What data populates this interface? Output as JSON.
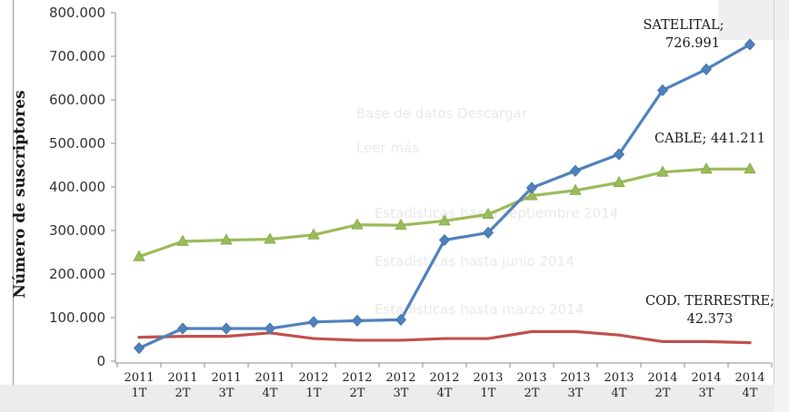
{
  "chart_data": {
    "type": "line",
    "title": "",
    "xlabel": "",
    "ylabel": "Número de suscriptores",
    "ylim": [
      0,
      800000
    ],
    "yticks": [
      "0",
      "100.000",
      "200.000",
      "300.000",
      "400.000",
      "500.000",
      "600.000",
      "700.000",
      "800.000"
    ],
    "categories": [
      {
        "year": "2011",
        "quarter": "1T"
      },
      {
        "year": "2011",
        "quarter": "2T"
      },
      {
        "year": "2011",
        "quarter": "3T"
      },
      {
        "year": "2011",
        "quarter": "4T"
      },
      {
        "year": "2012",
        "quarter": "1T"
      },
      {
        "year": "2012",
        "quarter": "2T"
      },
      {
        "year": "2012",
        "quarter": "3T"
      },
      {
        "year": "2012",
        "quarter": "4T"
      },
      {
        "year": "2013",
        "quarter": "1T"
      },
      {
        "year": "2013",
        "quarter": "2T"
      },
      {
        "year": "2013",
        "quarter": "3T"
      },
      {
        "year": "2013",
        "quarter": "4T"
      },
      {
        "year": "2014",
        "quarter": "2T"
      },
      {
        "year": "2014",
        "quarter": "3T"
      },
      {
        "year": "2014",
        "quarter": "4T"
      }
    ],
    "series": [
      {
        "name": "SATELITAL",
        "color": "#4f81bd",
        "marker": "diamond",
        "values": [
          30000,
          75000,
          75000,
          75000,
          90000,
          93000,
          95000,
          278000,
          295000,
          398000,
          437000,
          475000,
          622000,
          670000,
          726991
        ]
      },
      {
        "name": "CABLE",
        "color": "#9bbb59",
        "marker": "triangle",
        "values": [
          240000,
          275000,
          278000,
          280000,
          290000,
          313000,
          312000,
          322000,
          337000,
          380000,
          392000,
          410000,
          434000,
          441000,
          441211
        ]
      },
      {
        "name": "COD. TERRESTRE",
        "color": "#c0504d",
        "marker": "none",
        "values": [
          55000,
          57000,
          57000,
          65000,
          52000,
          48000,
          48000,
          52000,
          52000,
          68000,
          68000,
          60000,
          45000,
          45000,
          42373
        ]
      }
    ],
    "annotations": [
      {
        "series": "SATELITAL",
        "line1": "SATELITAL;",
        "line2": "726.991"
      },
      {
        "series": "CABLE",
        "line1": "CABLE; 441.211"
      },
      {
        "series": "COD. TERRESTRE",
        "line1": "COD. TERRESTRE;",
        "line2": "42.373"
      }
    ],
    "legend": "none",
    "grid": false
  },
  "background_text": [
    "Base de datos Descargar",
    "Leer más",
    "Estadísticas hasta septiembre 2014",
    "Estadísticas hasta junio 2014",
    "Estadísticas hasta marzo 2014"
  ]
}
